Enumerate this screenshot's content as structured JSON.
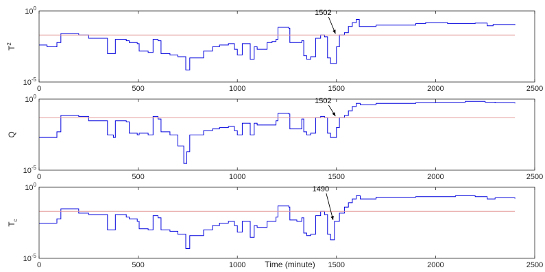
{
  "figure": {
    "xlabel": "Time (minute)"
  },
  "chart_data": [
    {
      "type": "line",
      "ylabel": "T",
      "ylabel_sup": "2",
      "ylabel_sub": "",
      "yscale": "log",
      "xlim": [
        0,
        2500
      ],
      "ylim_exp": [
        -5,
        0
      ],
      "ytick_labels": [
        {
          "base": "10",
          "exp": "0"
        },
        {
          "base": "10",
          "exp": "-5"
        }
      ],
      "xticks": [
        "0",
        "500",
        "1000",
        "1500",
        "2000",
        "2500"
      ],
      "annotation": {
        "text": "1502",
        "x": 1502
      },
      "threshold": 0.02,
      "series": [
        {
          "color": "#0000dd",
          "points": [
            [
              0,
              0.004
            ],
            [
              40,
              0.003
            ],
            [
              90,
              0.006
            ],
            [
              110,
              0.025
            ],
            [
              200,
              0.02
            ],
            [
              250,
              0.012
            ],
            [
              330,
              0.012
            ],
            [
              345,
              0.001
            ],
            [
              375,
              0.001
            ],
            [
              385,
              0.01
            ],
            [
              440,
              0.008
            ],
            [
              455,
              0.006
            ],
            [
              495,
              0.005
            ],
            [
              505,
              0.0015
            ],
            [
              550,
              0.0012
            ],
            [
              575,
              0.01
            ],
            [
              600,
              0.008
            ],
            [
              615,
              0.001
            ],
            [
              660,
              0.0008
            ],
            [
              700,
              0.0006
            ],
            [
              740,
              7e-05
            ],
            [
              760,
              0.0005
            ],
            [
              830,
              0.0015
            ],
            [
              875,
              0.003
            ],
            [
              910,
              0.004
            ],
            [
              955,
              0.005
            ],
            [
              985,
              0.002
            ],
            [
              1000,
              0.0008
            ],
            [
              1025,
              0.005
            ],
            [
              1065,
              0.0004
            ],
            [
              1085,
              0.003
            ],
            [
              1100,
              0.002
            ],
            [
              1150,
              0.006
            ],
            [
              1175,
              0.007
            ],
            [
              1195,
              0.01
            ],
            [
              1205,
              0.07
            ],
            [
              1260,
              0.06
            ],
            [
              1265,
              0.006
            ],
            [
              1300,
              0.006
            ],
            [
              1325,
              0.008
            ],
            [
              1335,
              0.0007
            ],
            [
              1350,
              0.0004
            ],
            [
              1370,
              0.0006
            ],
            [
              1395,
              0.012
            ],
            [
              1420,
              0.02
            ],
            [
              1440,
              0.015
            ],
            [
              1455,
              0.0005
            ],
            [
              1470,
              0.0002
            ],
            [
              1500,
              0.003
            ],
            [
              1515,
              0.02
            ],
            [
              1540,
              0.03
            ],
            [
              1560,
              0.08
            ],
            [
              1580,
              0.15
            ],
            [
              1600,
              0.25
            ],
            [
              1615,
              0.08
            ],
            [
              1700,
              0.1
            ],
            [
              1900,
              0.13
            ],
            [
              1950,
              0.15
            ],
            [
              2000,
              0.15
            ],
            [
              2060,
              0.13
            ],
            [
              2200,
              0.14
            ],
            [
              2260,
              0.09
            ],
            [
              2290,
              0.11
            ],
            [
              2400,
              0.1
            ]
          ]
        },
        {
          "color": "#e59a9a",
          "points": [
            [
              0,
              0.02
            ],
            [
              2400,
              0.02
            ]
          ]
        }
      ]
    },
    {
      "type": "line",
      "ylabel": "Q",
      "ylabel_sup": "",
      "ylabel_sub": "",
      "yscale": "log",
      "xlim": [
        0,
        2500
      ],
      "ylim_exp": [
        -5,
        0
      ],
      "ytick_labels": [
        {
          "base": "10",
          "exp": "0"
        },
        {
          "base": "10",
          "exp": "-5"
        }
      ],
      "xticks": [
        "0",
        "500",
        "1000",
        "1500",
        "2000",
        "2500"
      ],
      "annotation": {
        "text": "1502",
        "x": 1502
      },
      "threshold": 0.05,
      "series": [
        {
          "color": "#0000dd",
          "points": [
            [
              0,
              0.002
            ],
            [
              40,
              0.002
            ],
            [
              90,
              0.005
            ],
            [
              110,
              0.07
            ],
            [
              200,
              0.06
            ],
            [
              250,
              0.03
            ],
            [
              330,
              0.03
            ],
            [
              345,
              0.003
            ],
            [
              375,
              0.002
            ],
            [
              385,
              0.03
            ],
            [
              440,
              0.025
            ],
            [
              455,
              0.004
            ],
            [
              495,
              0.003
            ],
            [
              505,
              0.004
            ],
            [
              550,
              0.003
            ],
            [
              575,
              0.06
            ],
            [
              600,
              0.04
            ],
            [
              615,
              0.005
            ],
            [
              660,
              0.003
            ],
            [
              700,
              0.0005
            ],
            [
              730,
              3e-05
            ],
            [
              745,
              0.0002
            ],
            [
              760,
              0.003
            ],
            [
              830,
              0.006
            ],
            [
              875,
              0.008
            ],
            [
              910,
              0.01
            ],
            [
              955,
              0.012
            ],
            [
              985,
              0.006
            ],
            [
              1000,
              0.003
            ],
            [
              1025,
              0.02
            ],
            [
              1065,
              0.003
            ],
            [
              1085,
              0.02
            ],
            [
              1100,
              0.015
            ],
            [
              1150,
              0.015
            ],
            [
              1195,
              0.03
            ],
            [
              1205,
              0.1
            ],
            [
              1260,
              0.09
            ],
            [
              1265,
              0.008
            ],
            [
              1300,
              0.008
            ],
            [
              1325,
              0.04
            ],
            [
              1335,
              0.005
            ],
            [
              1350,
              0.003
            ],
            [
              1370,
              0.004
            ],
            [
              1395,
              0.05
            ],
            [
              1420,
              0.06
            ],
            [
              1440,
              0.05
            ],
            [
              1455,
              0.004
            ],
            [
              1470,
              0.002
            ],
            [
              1500,
              0.01
            ],
            [
              1515,
              0.05
            ],
            [
              1540,
              0.07
            ],
            [
              1560,
              0.15
            ],
            [
              1580,
              0.3
            ],
            [
              1600,
              0.5
            ],
            [
              1620,
              0.4
            ],
            [
              1700,
              0.5
            ],
            [
              1900,
              0.55
            ],
            [
              2000,
              0.6
            ],
            [
              2150,
              0.7
            ],
            [
              2250,
              0.6
            ],
            [
              2300,
              0.55
            ],
            [
              2400,
              0.5
            ]
          ]
        },
        {
          "color": "#e59a9a",
          "points": [
            [
              0,
              0.05
            ],
            [
              2400,
              0.05
            ]
          ]
        }
      ]
    },
    {
      "type": "line",
      "ylabel": "T",
      "ylabel_sup": "",
      "ylabel_sub": "c",
      "yscale": "log",
      "xlim": [
        0,
        2500
      ],
      "ylim_exp": [
        -5,
        0
      ],
      "ytick_labels": [
        {
          "base": "10",
          "exp": "0"
        },
        {
          "base": "10",
          "exp": "-5"
        }
      ],
      "xticks": [
        "0",
        "500",
        "1000",
        "1500",
        "2000",
        "2500"
      ],
      "annotation": {
        "text": "1490",
        "x": 1490
      },
      "threshold": 0.02,
      "series": [
        {
          "color": "#0000dd",
          "points": [
            [
              0,
              0.003
            ],
            [
              40,
              0.003
            ],
            [
              90,
              0.006
            ],
            [
              110,
              0.03
            ],
            [
              200,
              0.015
            ],
            [
              250,
              0.012
            ],
            [
              330,
              0.012
            ],
            [
              345,
              0.001
            ],
            [
              375,
              0.001
            ],
            [
              385,
              0.012
            ],
            [
              440,
              0.008
            ],
            [
              455,
              0.006
            ],
            [
              495,
              0.004
            ],
            [
              505,
              0.0012
            ],
            [
              550,
              0.001
            ],
            [
              575,
              0.01
            ],
            [
              600,
              0.007
            ],
            [
              615,
              0.001
            ],
            [
              660,
              0.0008
            ],
            [
              700,
              0.0005
            ],
            [
              740,
              5e-05
            ],
            [
              760,
              0.0004
            ],
            [
              830,
              0.001
            ],
            [
              875,
              0.002
            ],
            [
              910,
              0.003
            ],
            [
              955,
              0.004
            ],
            [
              985,
              0.002
            ],
            [
              1000,
              0.0007
            ],
            [
              1025,
              0.004
            ],
            [
              1065,
              0.0003
            ],
            [
              1085,
              0.002
            ],
            [
              1100,
              0.0015
            ],
            [
              1150,
              0.004
            ],
            [
              1195,
              0.008
            ],
            [
              1205,
              0.05
            ],
            [
              1260,
              0.04
            ],
            [
              1265,
              0.005
            ],
            [
              1300,
              0.004
            ],
            [
              1325,
              0.007
            ],
            [
              1335,
              0.0006
            ],
            [
              1350,
              0.0004
            ],
            [
              1370,
              0.0005
            ],
            [
              1395,
              0.01
            ],
            [
              1420,
              0.02
            ],
            [
              1440,
              0.012
            ],
            [
              1455,
              0.0005
            ],
            [
              1470,
              0.0002
            ],
            [
              1490,
              0.004
            ],
            [
              1515,
              0.015
            ],
            [
              1540,
              0.04
            ],
            [
              1560,
              0.08
            ],
            [
              1580,
              0.15
            ],
            [
              1600,
              0.25
            ],
            [
              1620,
              0.15
            ],
            [
              1700,
              0.2
            ],
            [
              1900,
              0.22
            ],
            [
              2100,
              0.25
            ],
            [
              2200,
              0.22
            ],
            [
              2260,
              0.15
            ],
            [
              2300,
              0.18
            ],
            [
              2400,
              0.16
            ]
          ]
        },
        {
          "color": "#e59a9a",
          "points": [
            [
              0,
              0.02
            ],
            [
              2400,
              0.02
            ]
          ]
        }
      ]
    }
  ]
}
